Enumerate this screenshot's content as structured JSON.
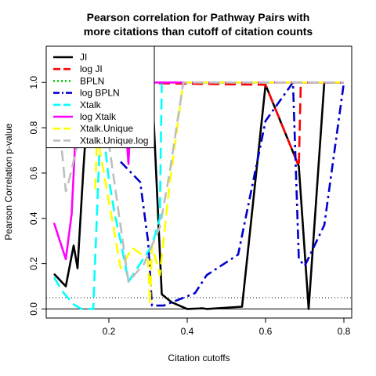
{
  "chart_data": {
    "type": "line",
    "title": [
      "Pearson correlation for Pathway Pairs with",
      "more citations than cutoff of citation counts"
    ],
    "xlabel": "Citation cutoffs",
    "ylabel": "Pearson Correlation p-value",
    "xlim": [
      0.04,
      0.82
    ],
    "ylim": [
      -0.04,
      1.16
    ],
    "xticks": [
      0.2,
      0.4,
      0.6,
      0.8
    ],
    "xtick_labels": [
      "0.2",
      "0.4",
      "0.6",
      "0.8"
    ],
    "yticks": [
      0.0,
      0.2,
      0.4,
      0.6,
      0.8,
      1.0
    ],
    "ytick_labels": [
      "0.0",
      "0.2",
      "0.4",
      "0.6",
      "0.8",
      "1.0"
    ],
    "reference_lines": [
      {
        "y": 0.05,
        "style": "dotted",
        "color": "#000000"
      },
      {
        "y": 0.0,
        "style": "solid",
        "color": "#000000"
      }
    ],
    "legend_position": "top-left",
    "series": [
      {
        "name": "JI",
        "color": "#000000",
        "dash": "solid",
        "x": [
          0.06,
          0.09,
          0.11,
          0.12,
          0.135,
          0.15,
          0.31,
          0.335,
          0.36,
          0.4,
          0.44,
          0.45,
          0.54,
          0.6,
          0.685,
          0.71,
          0.75,
          0.8
        ],
        "y": [
          0.155,
          0.1,
          0.28,
          0.18,
          0.62,
          1.0,
          1.0,
          0.065,
          0.03,
          0.0,
          0.003,
          0.0,
          0.01,
          0.99,
          0.63,
          0.0,
          1.0,
          1.0
        ]
      },
      {
        "name": "log JI",
        "color": "#ff0000",
        "dash": "dash",
        "x": [
          0.16,
          0.6,
          0.685,
          0.69,
          0.7,
          0.8
        ],
        "y": [
          1.0,
          0.99,
          0.63,
          1.0,
          1.0,
          1.0
        ]
      },
      {
        "name": "BPLN",
        "color": "#00cd00",
        "dash": "dotted",
        "x": [
          0.18,
          0.8
        ],
        "y": [
          1.0,
          1.0
        ]
      },
      {
        "name": "log BPLN",
        "color": "#0000cd",
        "dash": "dashdot",
        "x": [
          0.23,
          0.28,
          0.3,
          0.31,
          0.34,
          0.42,
          0.45,
          0.53,
          0.6,
          0.67,
          0.685,
          0.7,
          0.75,
          0.8
        ],
        "y": [
          0.65,
          0.56,
          0.3,
          0.015,
          0.015,
          0.07,
          0.15,
          0.24,
          0.83,
          1.0,
          0.22,
          0.19,
          0.37,
          1.0
        ]
      },
      {
        "name": "Xtalk",
        "color": "#00ffff",
        "dash": "dash",
        "x": [
          0.06,
          0.08,
          0.1,
          0.11,
          0.13,
          0.16,
          0.18,
          0.2,
          0.215,
          0.23,
          0.25,
          0.31,
          0.33,
          0.335
        ],
        "y": [
          0.14,
          0.08,
          0.04,
          0.02,
          0.0,
          0.0,
          0.88,
          0.57,
          0.42,
          0.3,
          0.12,
          0.28,
          0.4,
          1.0
        ]
      },
      {
        "name": "log Xtalk",
        "color": "#ff00ff",
        "dash": "solid",
        "x": [
          0.06,
          0.09,
          0.105,
          0.12,
          0.135,
          0.15,
          0.2,
          0.24,
          0.25,
          0.26,
          0.8
        ],
        "y": [
          0.38,
          0.22,
          0.42,
          0.95,
          0.83,
          1.0,
          1.0,
          0.88,
          0.64,
          1.0,
          1.0
        ]
      },
      {
        "name": "Xtalk.Unique",
        "color": "#ffff00",
        "dash": "dash",
        "x": [
          0.165,
          0.17,
          0.23,
          0.26,
          0.3,
          0.305,
          0.31,
          0.33,
          0.355,
          0.39,
          0.8
        ],
        "y": [
          0.53,
          0.77,
          0.18,
          0.27,
          0.22,
          0.02,
          0.28,
          0.15,
          0.55,
          1.0,
          1.0
        ]
      },
      {
        "name": "Xtalk.Unique.log",
        "color": "#bebebe",
        "dash": "dash",
        "x": [
          0.08,
          0.09,
          0.1,
          0.13,
          0.15,
          0.2,
          0.25,
          0.29,
          0.33,
          0.355,
          0.39,
          0.8
        ],
        "y": [
          0.7,
          0.52,
          0.58,
          0.8,
          1.0,
          0.73,
          0.12,
          0.2,
          0.36,
          0.6,
          1.0,
          1.0
        ]
      }
    ]
  }
}
